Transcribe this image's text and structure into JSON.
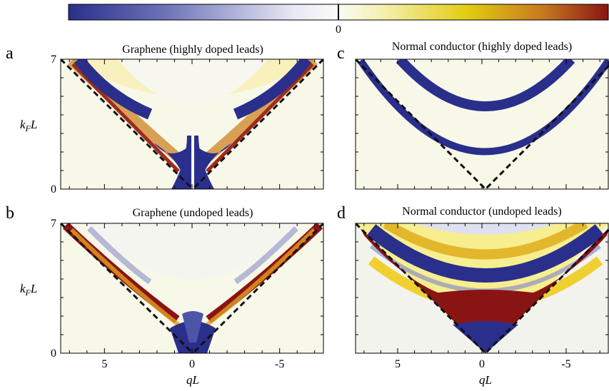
{
  "colorbar": {
    "zero_label": "0"
  },
  "axes": {
    "ylabel_main": "k",
    "ylabel_sub": "F",
    "ylabel_tail": "L",
    "xlabel_main": "qL"
  },
  "palette": {
    "negative_dark": "#2a2f8c",
    "neutral": "#f7f8e8",
    "positive_mid": "#e6d020",
    "positive_dark": "#8a1414",
    "dashed_line": "#111111"
  },
  "chart_data": [
    {
      "type": "heatmap",
      "panel_letter": "a",
      "title": "Graphene (highly doped leads)",
      "x_range": [
        7.5,
        -7.5
      ],
      "y_range": [
        0,
        7
      ],
      "y_ticks": [
        "0",
        "7"
      ],
      "x_ticks": [],
      "features": [
        {
          "kind": "dirac-cone",
          "slope": 1
        },
        {
          "kind": "blue-band",
          "side": "both",
          "distance_from_edge": 1.2,
          "from_y": 5.0,
          "to_y": 7
        },
        {
          "kind": "red-band",
          "side": "both",
          "distance_from_edge": 0.4,
          "from_y": 2.5,
          "to_y": 7
        },
        {
          "kind": "blue-core",
          "near_x": 0,
          "from_y": 0,
          "to_y": 2.8
        }
      ]
    },
    {
      "type": "heatmap",
      "panel_letter": "c",
      "title": "Normal conductor (highly doped leads)",
      "x_range": [
        7.5,
        -7.5
      ],
      "y_range": [
        0,
        7
      ],
      "y_ticks": [],
      "x_ticks": [],
      "features": [
        {
          "kind": "dirac-cone",
          "slope": 1
        },
        {
          "kind": "parabola",
          "y_at_zero": 1.4,
          "coefficient": 0.22,
          "color": "blue"
        },
        {
          "kind": "parabola",
          "y_at_zero": 4.7,
          "coefficient": 0.13,
          "color": "blue"
        }
      ]
    },
    {
      "type": "heatmap",
      "panel_letter": "b",
      "title": "Graphene (undoped leads)",
      "x_range": [
        7.5,
        -7.5
      ],
      "y_range": [
        0,
        7
      ],
      "y_ticks": [
        "0",
        "7"
      ],
      "x_ticks": [
        "5",
        "0",
        "-5"
      ],
      "features": [
        {
          "kind": "dirac-cone",
          "slope": 1
        },
        {
          "kind": "red-band",
          "side": "both",
          "distance_from_edge": 0.6,
          "from_y": 1.5,
          "to_y": 7
        },
        {
          "kind": "blue-core",
          "near_x": 0,
          "from_y": 0,
          "to_y": 1.8
        },
        {
          "kind": "blue-faint",
          "side": "both",
          "distance_from_edge": 1.8,
          "from_y": 4.0,
          "to_y": 7
        }
      ]
    },
    {
      "type": "heatmap",
      "panel_letter": "d",
      "title": "Normal conductor (undoped leads)",
      "x_range": [
        7.5,
        -7.5
      ],
      "y_range": [
        0,
        7
      ],
      "y_ticks": [],
      "x_ticks": [
        "5",
        "0",
        "-5"
      ],
      "features": [
        {
          "kind": "dirac-cone",
          "slope": 1
        },
        {
          "kind": "red-fill",
          "from_y": 1.5,
          "to_y": 2.8
        },
        {
          "kind": "blue-fill",
          "from_y": 0,
          "to_y": 1.5
        },
        {
          "kind": "parabola",
          "y_at_zero": 3.9,
          "coefficient": 0.12,
          "color": "blue"
        },
        {
          "kind": "parabola",
          "y_at_zero": 5.3,
          "coefficient": 0.08,
          "color": "yellow"
        }
      ]
    }
  ]
}
